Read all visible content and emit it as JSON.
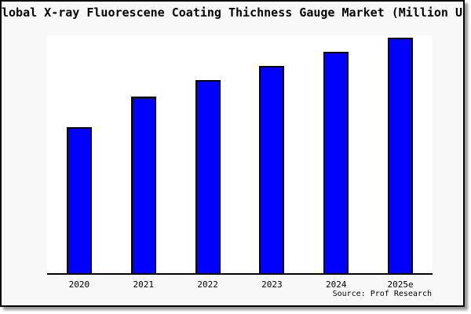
{
  "title": "lobal X-ray Fluorescene Coating Thichness Gauge Market (Million USD",
  "source": "Source: Prof Research",
  "colors": {
    "bar": "#0000ff",
    "bar_border": "#000000",
    "frame_background": "#f8f8f8",
    "plot_background": "#ffffff",
    "axis": "#000000",
    "shadow": "#999999"
  },
  "chart_data": {
    "type": "bar",
    "title": "lobal X-ray Fluorescene Coating Thichness Gauge Market (Million USD",
    "categories": [
      "2020",
      "2021",
      "2022",
      "2023",
      "2024",
      "2025e"
    ],
    "values": [
      62,
      75,
      82,
      88,
      94,
      100
    ],
    "value_note": "relative index estimated from bar heights; no y-axis labels shown",
    "xlabel": "",
    "ylabel": "",
    "ylim": [
      0,
      101
    ],
    "grid": false,
    "legend": false,
    "source": "Source: Prof Research"
  }
}
